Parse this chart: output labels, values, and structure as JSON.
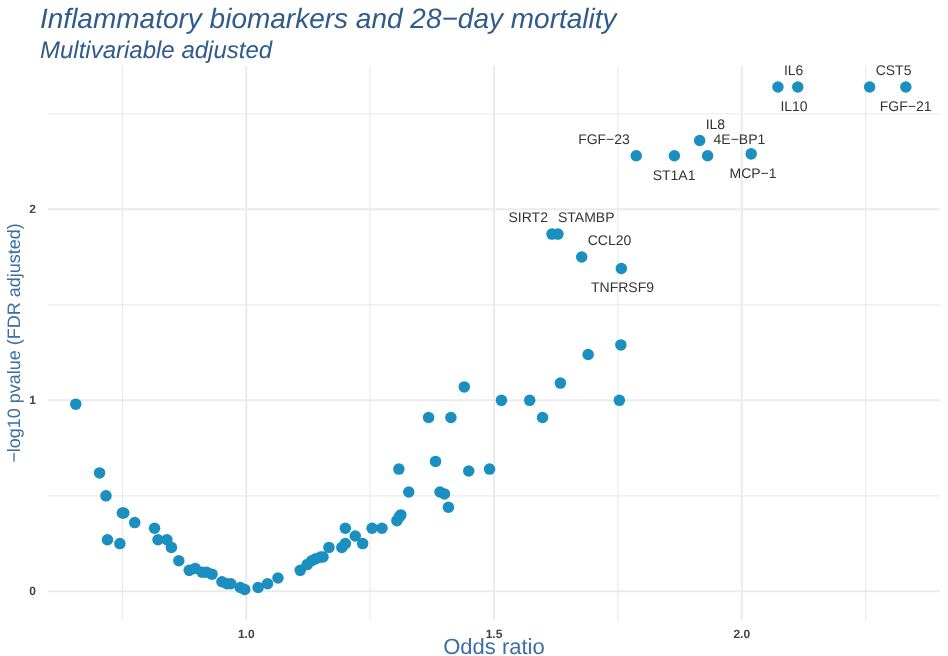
{
  "chart_data": {
    "type": "scatter",
    "title": "Inflammatory biomarkers and 28−day mortality",
    "subtitle": "Multivariable adjusted",
    "xlabel": "Odds ratio",
    "ylabel": "−log10 pvalue (FDR adjusted)",
    "x": [
      0.656,
      0.704,
      0.717,
      0.72,
      0.75,
      0.753,
      0.745,
      0.775,
      0.815,
      0.822,
      0.84,
      0.849,
      0.864,
      0.885,
      0.897,
      0.911,
      0.92,
      0.931,
      0.951,
      0.961,
      0.969,
      0.988,
      0.997,
      1.024,
      1.043,
      1.064,
      1.109,
      1.123,
      1.132,
      1.14,
      1.15,
      1.155,
      1.167,
      1.193,
      1.2,
      1.2,
      1.22,
      1.235,
      1.254,
      1.274,
      1.304,
      1.309,
      1.312,
      1.308,
      1.328,
      1.368,
      1.382,
      1.391,
      1.4,
      1.408,
      1.413,
      1.44,
      1.449,
      1.491,
      1.515,
      1.572,
      1.598,
      1.634,
      1.69,
      1.753,
      1.756,
      2.073,
      2.113,
      2.258,
      2.331,
      1.787,
      1.864,
      1.915,
      1.931,
      2.019,
      1.617,
      1.629,
      1.677,
      1.757
    ],
    "series": [
      {
        "color": "#1b8fc0",
        "values": [
          0.98,
          0.62,
          0.5,
          0.27,
          0.41,
          0.41,
          0.25,
          0.36,
          0.33,
          0.27,
          0.27,
          0.23,
          0.16,
          0.11,
          0.12,
          0.1,
          0.1,
          0.09,
          0.05,
          0.04,
          0.04,
          0.02,
          0.01,
          0.02,
          0.04,
          0.07,
          0.11,
          0.14,
          0.16,
          0.17,
          0.18,
          0.18,
          0.23,
          0.23,
          0.25,
          0.33,
          0.29,
          0.25,
          0.33,
          0.33,
          0.37,
          0.39,
          0.4,
          0.64,
          0.52,
          0.91,
          0.68,
          0.52,
          0.51,
          0.44,
          0.91,
          1.07,
          0.63,
          0.64,
          1.0,
          1.0,
          0.91,
          1.09,
          1.24,
          1.0,
          1.29,
          2.64,
          2.64,
          2.64,
          2.64,
          2.28,
          2.28,
          2.36,
          2.28,
          2.29,
          1.87,
          1.87,
          1.75,
          1.69
        ]
      }
    ],
    "annotations": [
      {
        "text": "IL6",
        "x": 2.073,
        "y": 2.64
      },
      {
        "text": "IL10",
        "x": 2.113,
        "y": 2.64
      },
      {
        "text": "CST5",
        "x": 2.258,
        "y": 2.64
      },
      {
        "text": "FGF−21",
        "x": 2.331,
        "y": 2.64
      },
      {
        "text": "FGF−23",
        "x": 1.787,
        "y": 2.28
      },
      {
        "text": "ST1A1",
        "x": 1.864,
        "y": 2.28
      },
      {
        "text": "IL8",
        "x": 1.915,
        "y": 2.36
      },
      {
        "text": "4E−BP1",
        "x": 1.931,
        "y": 2.28
      },
      {
        "text": "MCP−1",
        "x": 2.019,
        "y": 2.29
      },
      {
        "text": "STAMBP",
        "x": 1.617,
        "y": 1.87
      },
      {
        "text": "SIRT2",
        "x": 1.629,
        "y": 1.87
      },
      {
        "text": "CCL20",
        "x": 1.677,
        "y": 1.75
      },
      {
        "text": "TNFRSF9",
        "x": 1.757,
        "y": 1.69
      }
    ],
    "xlim": [
      0.6,
      2.4
    ],
    "ylim": [
      -0.15,
      2.75
    ],
    "xticks": [
      {
        "value": 0.75,
        "label": null
      },
      {
        "value": 1,
        "label": "1.0"
      },
      {
        "value": 1.25,
        "label": null
      },
      1.5,
      {
        "value": 1.75,
        "label": null
      },
      {
        "value": 2,
        "label": "2.0"
      },
      {
        "value": 2.25,
        "label": null
      }
    ],
    "yticks": [
      0,
      {
        "value": 0.5,
        "label": null
      },
      1,
      {
        "value": 1.5,
        "label": null
      },
      2,
      {
        "value": 2.5,
        "label": null
      }
    ],
    "grid": true,
    "marker": "circle"
  }
}
